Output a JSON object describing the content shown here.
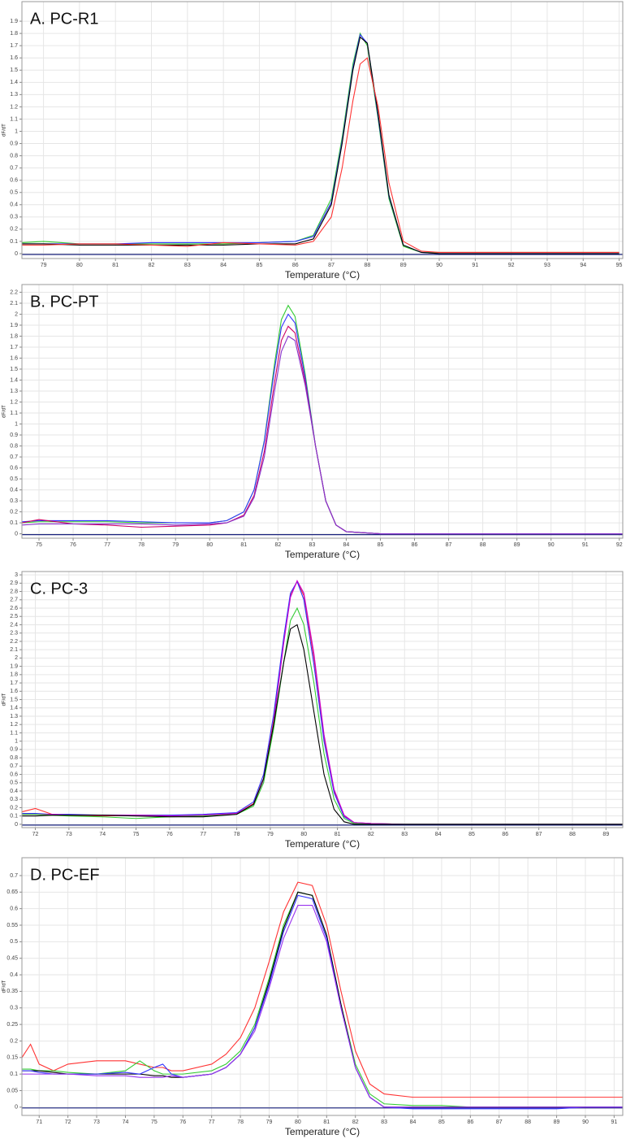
{
  "chart_data": [
    {
      "type": "line",
      "title": "A. PC-R1",
      "x_label": "Temperature (°C)",
      "y_label": "dF/dT",
      "xlim": [
        78.4,
        95.1
      ],
      "ylim": [
        -0.04,
        2.06
      ],
      "grid": true,
      "xticks": [
        79,
        80,
        81,
        82,
        83,
        84,
        85,
        86,
        87,
        88,
        89,
        90,
        91,
        92,
        93,
        94,
        95
      ],
      "yticks": [
        0,
        0.1,
        0.2,
        0.3,
        0.4,
        0.5,
        0.6,
        0.7,
        0.8,
        0.9,
        1,
        1.1,
        1.2,
        1.3,
        1.4,
        1.5,
        1.6,
        1.7,
        1.8,
        1.9
      ],
      "x": [
        78.4,
        79,
        80,
        81,
        82,
        83,
        84,
        85,
        86,
        86.5,
        87,
        87.3,
        87.6,
        87.8,
        88,
        88.3,
        88.6,
        89,
        89.5,
        90,
        91,
        92,
        93,
        94,
        95
      ],
      "series": [
        {
          "color": "#33cc33",
          "values": [
            0.09,
            0.1,
            0.08,
            0.08,
            0.08,
            0.08,
            0.08,
            0.09,
            0.1,
            0.15,
            0.45,
            0.95,
            1.55,
            1.8,
            1.7,
            1.1,
            0.45,
            0.06,
            0.01,
            0.01,
            0.01,
            0.01,
            0.01,
            0.01,
            0.01
          ]
        },
        {
          "color": "#3333ff",
          "values": [
            0.08,
            0.08,
            0.08,
            0.08,
            0.09,
            0.09,
            0.09,
            0.09,
            0.1,
            0.14,
            0.42,
            0.92,
            1.52,
            1.79,
            1.72,
            1.12,
            0.47,
            0.07,
            0.01,
            0,
            0,
            0,
            0,
            0,
            0
          ]
        },
        {
          "color": "#000000",
          "values": [
            0.08,
            0.08,
            0.07,
            0.07,
            0.07,
            0.07,
            0.07,
            0.08,
            0.08,
            0.12,
            0.4,
            0.9,
            1.5,
            1.77,
            1.72,
            1.14,
            0.48,
            0.07,
            0.01,
            0,
            0,
            0,
            0,
            0,
            0
          ]
        },
        {
          "color": "#ff3333",
          "values": [
            0.07,
            0.07,
            0.08,
            0.08,
            0.07,
            0.06,
            0.09,
            0.08,
            0.07,
            0.1,
            0.3,
            0.7,
            1.25,
            1.55,
            1.6,
            1.2,
            0.58,
            0.1,
            0.02,
            0.01,
            0.01,
            0.01,
            0.01,
            0.01,
            0.01
          ]
        }
      ]
    },
    {
      "type": "line",
      "title": "B. PC-PT",
      "x_label": "Temperature (°C)",
      "y_label": "dF/dT",
      "xlim": [
        74.5,
        92.1
      ],
      "ylim": [
        -0.04,
        2.27
      ],
      "grid": true,
      "xticks": [
        75,
        76,
        77,
        78,
        79,
        80,
        81,
        82,
        83,
        84,
        85,
        86,
        87,
        88,
        89,
        90,
        91,
        92
      ],
      "yticks": [
        0,
        0.1,
        0.2,
        0.3,
        0.4,
        0.5,
        0.6,
        0.7,
        0.8,
        0.9,
        1,
        1.1,
        1.2,
        1.3,
        1.4,
        1.5,
        1.6,
        1.7,
        1.8,
        1.9,
        2,
        2.1,
        2.2
      ],
      "x": [
        74.5,
        75,
        76,
        77,
        78,
        79,
        80,
        80.5,
        81,
        81.3,
        81.6,
        81.9,
        82.1,
        82.3,
        82.5,
        82.8,
        83.1,
        83.4,
        83.7,
        84,
        85,
        86,
        87,
        88,
        89,
        90,
        91,
        92.1
      ],
      "series": [
        {
          "color": "#33cc33",
          "values": [
            0.1,
            0.11,
            0.11,
            0.11,
            0.1,
            0.1,
            0.1,
            0.12,
            0.2,
            0.4,
            0.85,
            1.55,
            1.95,
            2.08,
            1.98,
            1.45,
            0.8,
            0.3,
            0.08,
            0.02,
            0,
            0,
            0,
            0,
            0,
            0,
            0,
            0
          ]
        },
        {
          "color": "#3333ff",
          "values": [
            0.11,
            0.12,
            0.12,
            0.12,
            0.11,
            0.1,
            0.1,
            0.12,
            0.2,
            0.4,
            0.84,
            1.5,
            1.88,
            2,
            1.92,
            1.42,
            0.8,
            0.3,
            0.08,
            0.02,
            0,
            0,
            0,
            0,
            0,
            0,
            0,
            0
          ]
        },
        {
          "color": "#cc0066",
          "values": [
            0.1,
            0.13,
            0.09,
            0.08,
            0.06,
            0.07,
            0.08,
            0.1,
            0.17,
            0.35,
            0.75,
            1.38,
            1.76,
            1.89,
            1.83,
            1.38,
            0.8,
            0.3,
            0.08,
            0.02,
            0,
            0,
            0,
            0,
            0,
            0,
            0,
            0
          ]
        },
        {
          "color": "#8833cc",
          "values": [
            0.08,
            0.09,
            0.09,
            0.09,
            0.09,
            0.08,
            0.09,
            0.1,
            0.16,
            0.33,
            0.7,
            1.3,
            1.66,
            1.8,
            1.76,
            1.35,
            0.8,
            0.3,
            0.08,
            0.02,
            0,
            0,
            0,
            0,
            0,
            0,
            0,
            0
          ]
        }
      ]
    },
    {
      "type": "line",
      "title": "C. PC-3",
      "x_label": "Temperature (°C)",
      "y_label": "dF/dT",
      "xlim": [
        71.6,
        89.5
      ],
      "ylim": [
        -0.04,
        3.04
      ],
      "grid": true,
      "xticks": [
        72,
        73,
        74,
        75,
        76,
        77,
        78,
        79,
        80,
        81,
        82,
        83,
        84,
        85,
        86,
        87,
        88,
        89
      ],
      "yticks": [
        0,
        0.1,
        0.2,
        0.3,
        0.4,
        0.5,
        0.6,
        0.7,
        0.8,
        0.9,
        1,
        1.1,
        1.2,
        1.3,
        1.4,
        1.5,
        1.6,
        1.7,
        1.8,
        1.9,
        2,
        2.1,
        2.2,
        2.3,
        2.4,
        2.5,
        2.6,
        2.7,
        2.8,
        2.9,
        3
      ],
      "x": [
        71.6,
        72,
        72.5,
        73,
        74,
        75,
        76,
        77,
        78,
        78.5,
        78.8,
        79.1,
        79.4,
        79.6,
        79.8,
        80,
        80.3,
        80.6,
        80.9,
        81.2,
        81.5,
        82,
        83,
        84,
        85,
        86,
        87,
        88,
        89.5
      ],
      "series": [
        {
          "color": "#ff3333",
          "values": [
            0.15,
            0.19,
            0.12,
            0.11,
            0.1,
            0.11,
            0.11,
            0.11,
            0.13,
            0.25,
            0.55,
            1.25,
            2.2,
            2.75,
            2.92,
            2.75,
            2,
            1.05,
            0.4,
            0.1,
            0.02,
            0.01,
            0,
            0,
            0,
            0,
            0,
            0,
            0
          ]
        },
        {
          "color": "#3333ff",
          "values": [
            0.13,
            0.13,
            0.12,
            0.12,
            0.11,
            0.11,
            0.11,
            0.12,
            0.14,
            0.27,
            0.6,
            1.32,
            2.25,
            2.78,
            2.92,
            2.7,
            1.92,
            1,
            0.38,
            0.09,
            0.02,
            0.01,
            0,
            0,
            0,
            0,
            0,
            0,
            0
          ]
        },
        {
          "color": "#cc00cc",
          "values": [
            0.12,
            0.12,
            0.12,
            0.11,
            0.11,
            0.11,
            0.1,
            0.11,
            0.13,
            0.24,
            0.54,
            1.22,
            2.18,
            2.73,
            2.93,
            2.78,
            2.05,
            1.08,
            0.42,
            0.11,
            0.02,
            0.01,
            0,
            0,
            0,
            0,
            0,
            0,
            0
          ]
        },
        {
          "color": "#33cc33",
          "values": [
            0.12,
            0.12,
            0.11,
            0.1,
            0.09,
            0.07,
            0.09,
            0.1,
            0.12,
            0.22,
            0.5,
            1.15,
            1.95,
            2.45,
            2.6,
            2.4,
            1.7,
            0.85,
            0.3,
            0.07,
            0.01,
            0,
            0,
            0,
            0,
            0,
            0,
            0,
            0
          ]
        },
        {
          "color": "#000000",
          "values": [
            0.1,
            0.1,
            0.11,
            0.11,
            0.11,
            0.1,
            0.09,
            0.09,
            0.12,
            0.24,
            0.55,
            1.2,
            1.95,
            2.35,
            2.4,
            2.1,
            1.35,
            0.6,
            0.18,
            0.03,
            0,
            0,
            0,
            0,
            0,
            0,
            0,
            0,
            0
          ]
        }
      ]
    },
    {
      "type": "line",
      "title": "D. PC-EF",
      "x_label": "Temperature (°C)",
      "y_label": "dF/dT",
      "xlim": [
        70.4,
        91.3
      ],
      "ylim": [
        -0.025,
        0.754
      ],
      "grid": true,
      "xticks": [
        71,
        72,
        73,
        74,
        75,
        76,
        77,
        78,
        79,
        80,
        81,
        82,
        83,
        84,
        85,
        86,
        87,
        88,
        89,
        90,
        91
      ],
      "yticks": [
        0,
        0.05,
        0.1,
        0.15,
        0.2,
        0.25,
        0.3,
        0.35,
        0.4,
        0.45,
        0.5,
        0.55,
        0.6,
        0.65,
        0.7
      ],
      "x": [
        70.4,
        70.7,
        71,
        71.5,
        72,
        73,
        74,
        74.5,
        75,
        75.3,
        75.6,
        76,
        77,
        77.5,
        78,
        78.5,
        79,
        79.5,
        80,
        80.5,
        81,
        81.5,
        82,
        82.5,
        83,
        84,
        85,
        86,
        87,
        88,
        89,
        90,
        91.3
      ],
      "series": [
        {
          "color": "#ff3333",
          "values": [
            0.15,
            0.19,
            0.13,
            0.11,
            0.13,
            0.14,
            0.14,
            0.13,
            0.12,
            0.12,
            0.11,
            0.11,
            0.13,
            0.16,
            0.21,
            0.3,
            0.44,
            0.59,
            0.68,
            0.67,
            0.55,
            0.35,
            0.17,
            0.07,
            0.04,
            0.03,
            0.03,
            0.03,
            0.03,
            0.03,
            0.03,
            0.03,
            0.03
          ]
        },
        {
          "color": "#33cc33",
          "values": [
            0.115,
            0.115,
            0.11,
            0.11,
            0.105,
            0.1,
            0.11,
            0.14,
            0.11,
            0.1,
            0.1,
            0.1,
            0.11,
            0.13,
            0.17,
            0.25,
            0.39,
            0.55,
            0.65,
            0.64,
            0.52,
            0.31,
            0.13,
            0.04,
            0.01,
            0.005,
            0.005,
            0,
            0,
            0,
            0,
            0,
            0
          ]
        },
        {
          "color": "#000000",
          "values": [
            0.11,
            0.11,
            0.11,
            0.105,
            0.1,
            0.1,
            0.1,
            0.1,
            0.095,
            0.095,
            0.09,
            0.09,
            0.1,
            0.12,
            0.16,
            0.24,
            0.38,
            0.54,
            0.65,
            0.64,
            0.52,
            0.31,
            0.12,
            0.03,
            0,
            0,
            0,
            0,
            0,
            0,
            0,
            0,
            0
          ]
        },
        {
          "color": "#3333ff",
          "values": [
            0.11,
            0.11,
            0.105,
            0.1,
            0.1,
            0.1,
            0.105,
            0.1,
            0.12,
            0.13,
            0.1,
            0.09,
            0.1,
            0.12,
            0.16,
            0.24,
            0.37,
            0.53,
            0.64,
            0.63,
            0.51,
            0.3,
            0.12,
            0.03,
            0,
            -0.005,
            -0.005,
            -0.005,
            -0.005,
            -0.005,
            -0.005,
            0,
            0
          ]
        },
        {
          "color": "#9933ee",
          "values": [
            0.1,
            0.1,
            0.1,
            0.1,
            0.1,
            0.095,
            0.095,
            0.09,
            0.09,
            0.09,
            0.095,
            0.09,
            0.1,
            0.12,
            0.16,
            0.23,
            0.36,
            0.51,
            0.61,
            0.61,
            0.5,
            0.3,
            0.12,
            0.03,
            0,
            0,
            0,
            0,
            0,
            0,
            0,
            0,
            0
          ]
        }
      ]
    }
  ]
}
